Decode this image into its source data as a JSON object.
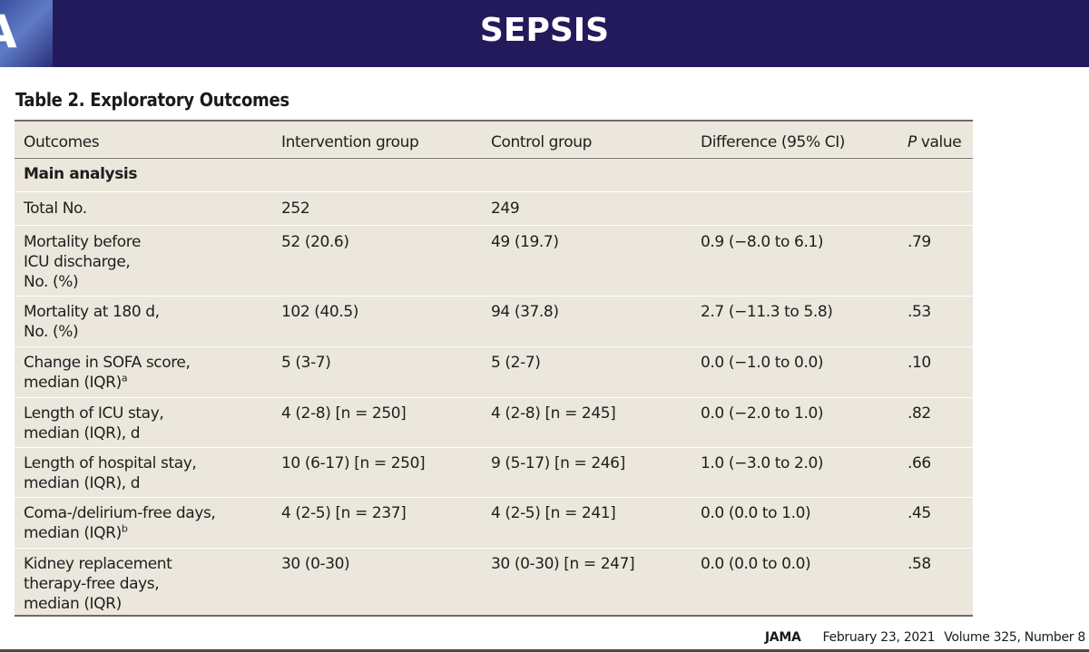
{
  "banner": {
    "logo_text": "A",
    "title": "SEPSIS"
  },
  "table": {
    "title": "Table 2. Exploratory Outcomes",
    "headers": [
      "Outcomes",
      "Intervention group",
      "Control group",
      "Difference (95% CI)",
      "value"
    ],
    "p_italic": "P",
    "section": "Main analysis",
    "rows": [
      {
        "outcome": "Total No.",
        "intervention": "252",
        "control": "249",
        "difference": "",
        "p": ""
      },
      {
        "outcome": "Mortality before\nICU discharge,\nNo. (%)",
        "intervention": "52 (20.6)",
        "control": "49 (19.7)",
        "difference": "0.9 (−8.0 to 6.1)",
        "p": ".79"
      },
      {
        "outcome": "Mortality at 180 d,\nNo. (%)",
        "intervention": "102 (40.5)",
        "control": "94 (37.8)",
        "difference": "2.7 (−11.3 to 5.8)",
        "p": ".53"
      },
      {
        "outcome": "Change in SOFA score,\nmedian (IQR)",
        "sup": "a",
        "intervention": "5 (3-7)",
        "control": "5 (2-7)",
        "difference": "0.0 (−1.0 to 0.0)",
        "p": ".10"
      },
      {
        "outcome": "Length of ICU stay,\nmedian (IQR), d",
        "intervention": "4 (2-8) [n = 250]",
        "control": "4 (2-8) [n = 245]",
        "difference": "0.0 (−2.0 to 1.0)",
        "p": ".82"
      },
      {
        "outcome": "Length of hospital stay,\nmedian (IQR), d",
        "intervention": "10 (6-17) [n = 250]",
        "control": "9 (5-17) [n = 246]",
        "difference": "1.0 (−3.0 to 2.0)",
        "p": ".66"
      },
      {
        "outcome": "Coma-/delirium-free days,\nmedian (IQR)",
        "sup": "b",
        "intervention": "4 (2-5) [n = 237]",
        "control": "4 (2-5) [n = 241]",
        "difference": "0.0 (0.0 to 1.0)",
        "p": ".45"
      },
      {
        "outcome": "Kidney replacement\ntherapy-free days,\nmedian (IQR)",
        "intervention": "30 (0-30)",
        "control": "30 (0-30) [n = 247]",
        "difference": "0.0 (0.0 to 0.0)",
        "p": ".58"
      }
    ]
  },
  "footer": {
    "journal": "JAMA",
    "date": "February 23, 2021",
    "volume": "Volume 325, Number 8"
  }
}
